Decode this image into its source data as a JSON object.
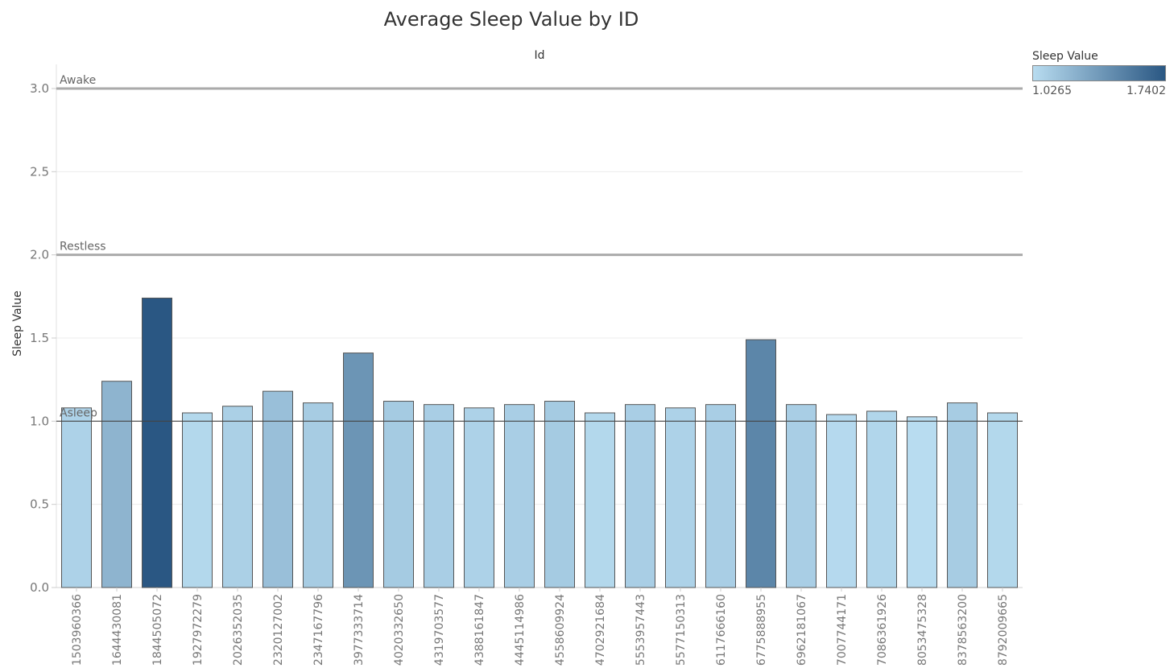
{
  "chart_data": {
    "type": "bar",
    "title": "Average Sleep Value by ID",
    "xlabel": "Id",
    "ylabel": "Sleep Value",
    "ylim": [
      0,
      3
    ],
    "yticks": [
      "0.0",
      "0.5",
      "1.0",
      "1.5",
      "2.0",
      "2.5",
      "3.0"
    ],
    "grid": true,
    "categories": [
      "1503960366",
      "1644430081",
      "1844505072",
      "1927972279",
      "2026352035",
      "2320127002",
      "2347167796",
      "3977333714",
      "4020332650",
      "4319703577",
      "4388161847",
      "4445114986",
      "4558609924",
      "4702921684",
      "5553957443",
      "5577150313",
      "6117666160",
      "6775888955",
      "6962181067",
      "7007744171",
      "7086361926",
      "8053475328",
      "8378563200",
      "8792009665"
    ],
    "values": [
      1.08,
      1.24,
      1.7402,
      1.05,
      1.09,
      1.18,
      1.11,
      1.41,
      1.12,
      1.1,
      1.08,
      1.1,
      1.12,
      1.05,
      1.1,
      1.08,
      1.1,
      1.49,
      1.1,
      1.04,
      1.06,
      1.0265,
      1.11,
      1.05
    ],
    "reference_lines": [
      {
        "label": "Awake",
        "value": 3.0
      },
      {
        "label": "Restless",
        "value": 2.0
      },
      {
        "label": "Asleep",
        "value": 1.0
      }
    ],
    "legend": {
      "title": "Sleep Value",
      "min_label": "1.0265",
      "max_label": "1.7402",
      "min_value": 1.0265,
      "max_value": 1.7402,
      "color_low": "#b8dcf0",
      "color_high": "#2a5783",
      "placement": "top-right"
    }
  }
}
